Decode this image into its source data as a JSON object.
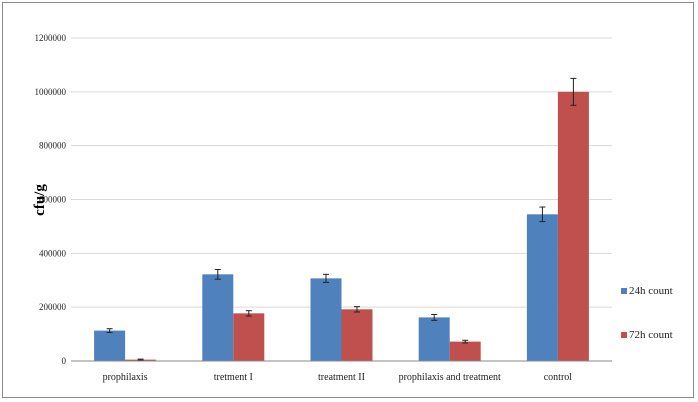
{
  "chart_data": {
    "type": "bar",
    "title": "",
    "xlabel": "",
    "ylabel": "cfu/g",
    "ylim": [
      0,
      1200000
    ],
    "yticks": [
      0,
      200000,
      400000,
      600000,
      800000,
      1000000,
      1200000
    ],
    "categories": [
      "prophilaxis",
      "tretment I",
      "treatment II",
      "prophilaxis and treatment",
      "control"
    ],
    "series": [
      {
        "name": "24h count",
        "color": "#4f81bd",
        "values": [
          113000,
          322000,
          307000,
          162000,
          545000
        ],
        "errors": [
          7000,
          18000,
          15000,
          11000,
          27000
        ]
      },
      {
        "name": "72h count",
        "color": "#c0504d",
        "values": [
          5000,
          177000,
          192000,
          72000,
          1000000
        ],
        "errors": [
          2000,
          10000,
          10000,
          5000,
          50000
        ]
      }
    ],
    "grid": true,
    "legend_position": "right"
  }
}
